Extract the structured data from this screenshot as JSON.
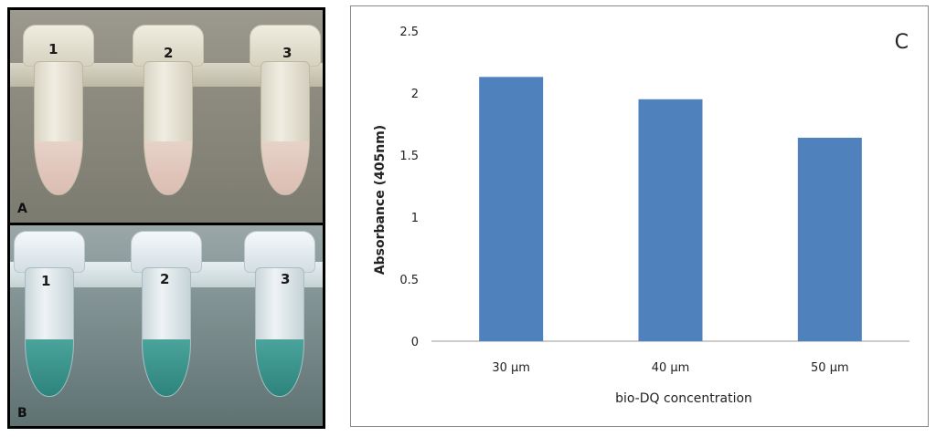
{
  "panels": {
    "a": {
      "label": "A",
      "tubes": [
        "1",
        "2",
        "3"
      ]
    },
    "b": {
      "label": "B",
      "tubes": [
        "1",
        "2",
        "3"
      ]
    },
    "c": {
      "label": "C"
    }
  },
  "chart_data": {
    "type": "bar",
    "categories": [
      "30 µm",
      "40 µm",
      "50 µm"
    ],
    "values": [
      2.13,
      1.95,
      1.64
    ],
    "xlabel": "bio-DQ concentration",
    "ylabel": "Absorbance  (405nm)",
    "ylim": [
      0,
      2.5
    ],
    "yticks": [
      "0",
      "0.5",
      "1",
      "1.5",
      "2",
      "2.5"
    ],
    "tick_values": [
      0,
      0.5,
      1,
      1.5,
      2,
      2.5
    ],
    "bar_color": "#4f81bd",
    "grid": false,
    "legend": "none"
  },
  "colors": {
    "liquid_a": "#dbbcb2",
    "liquid_b": "#2d847d",
    "bar": "#4f81bd"
  }
}
